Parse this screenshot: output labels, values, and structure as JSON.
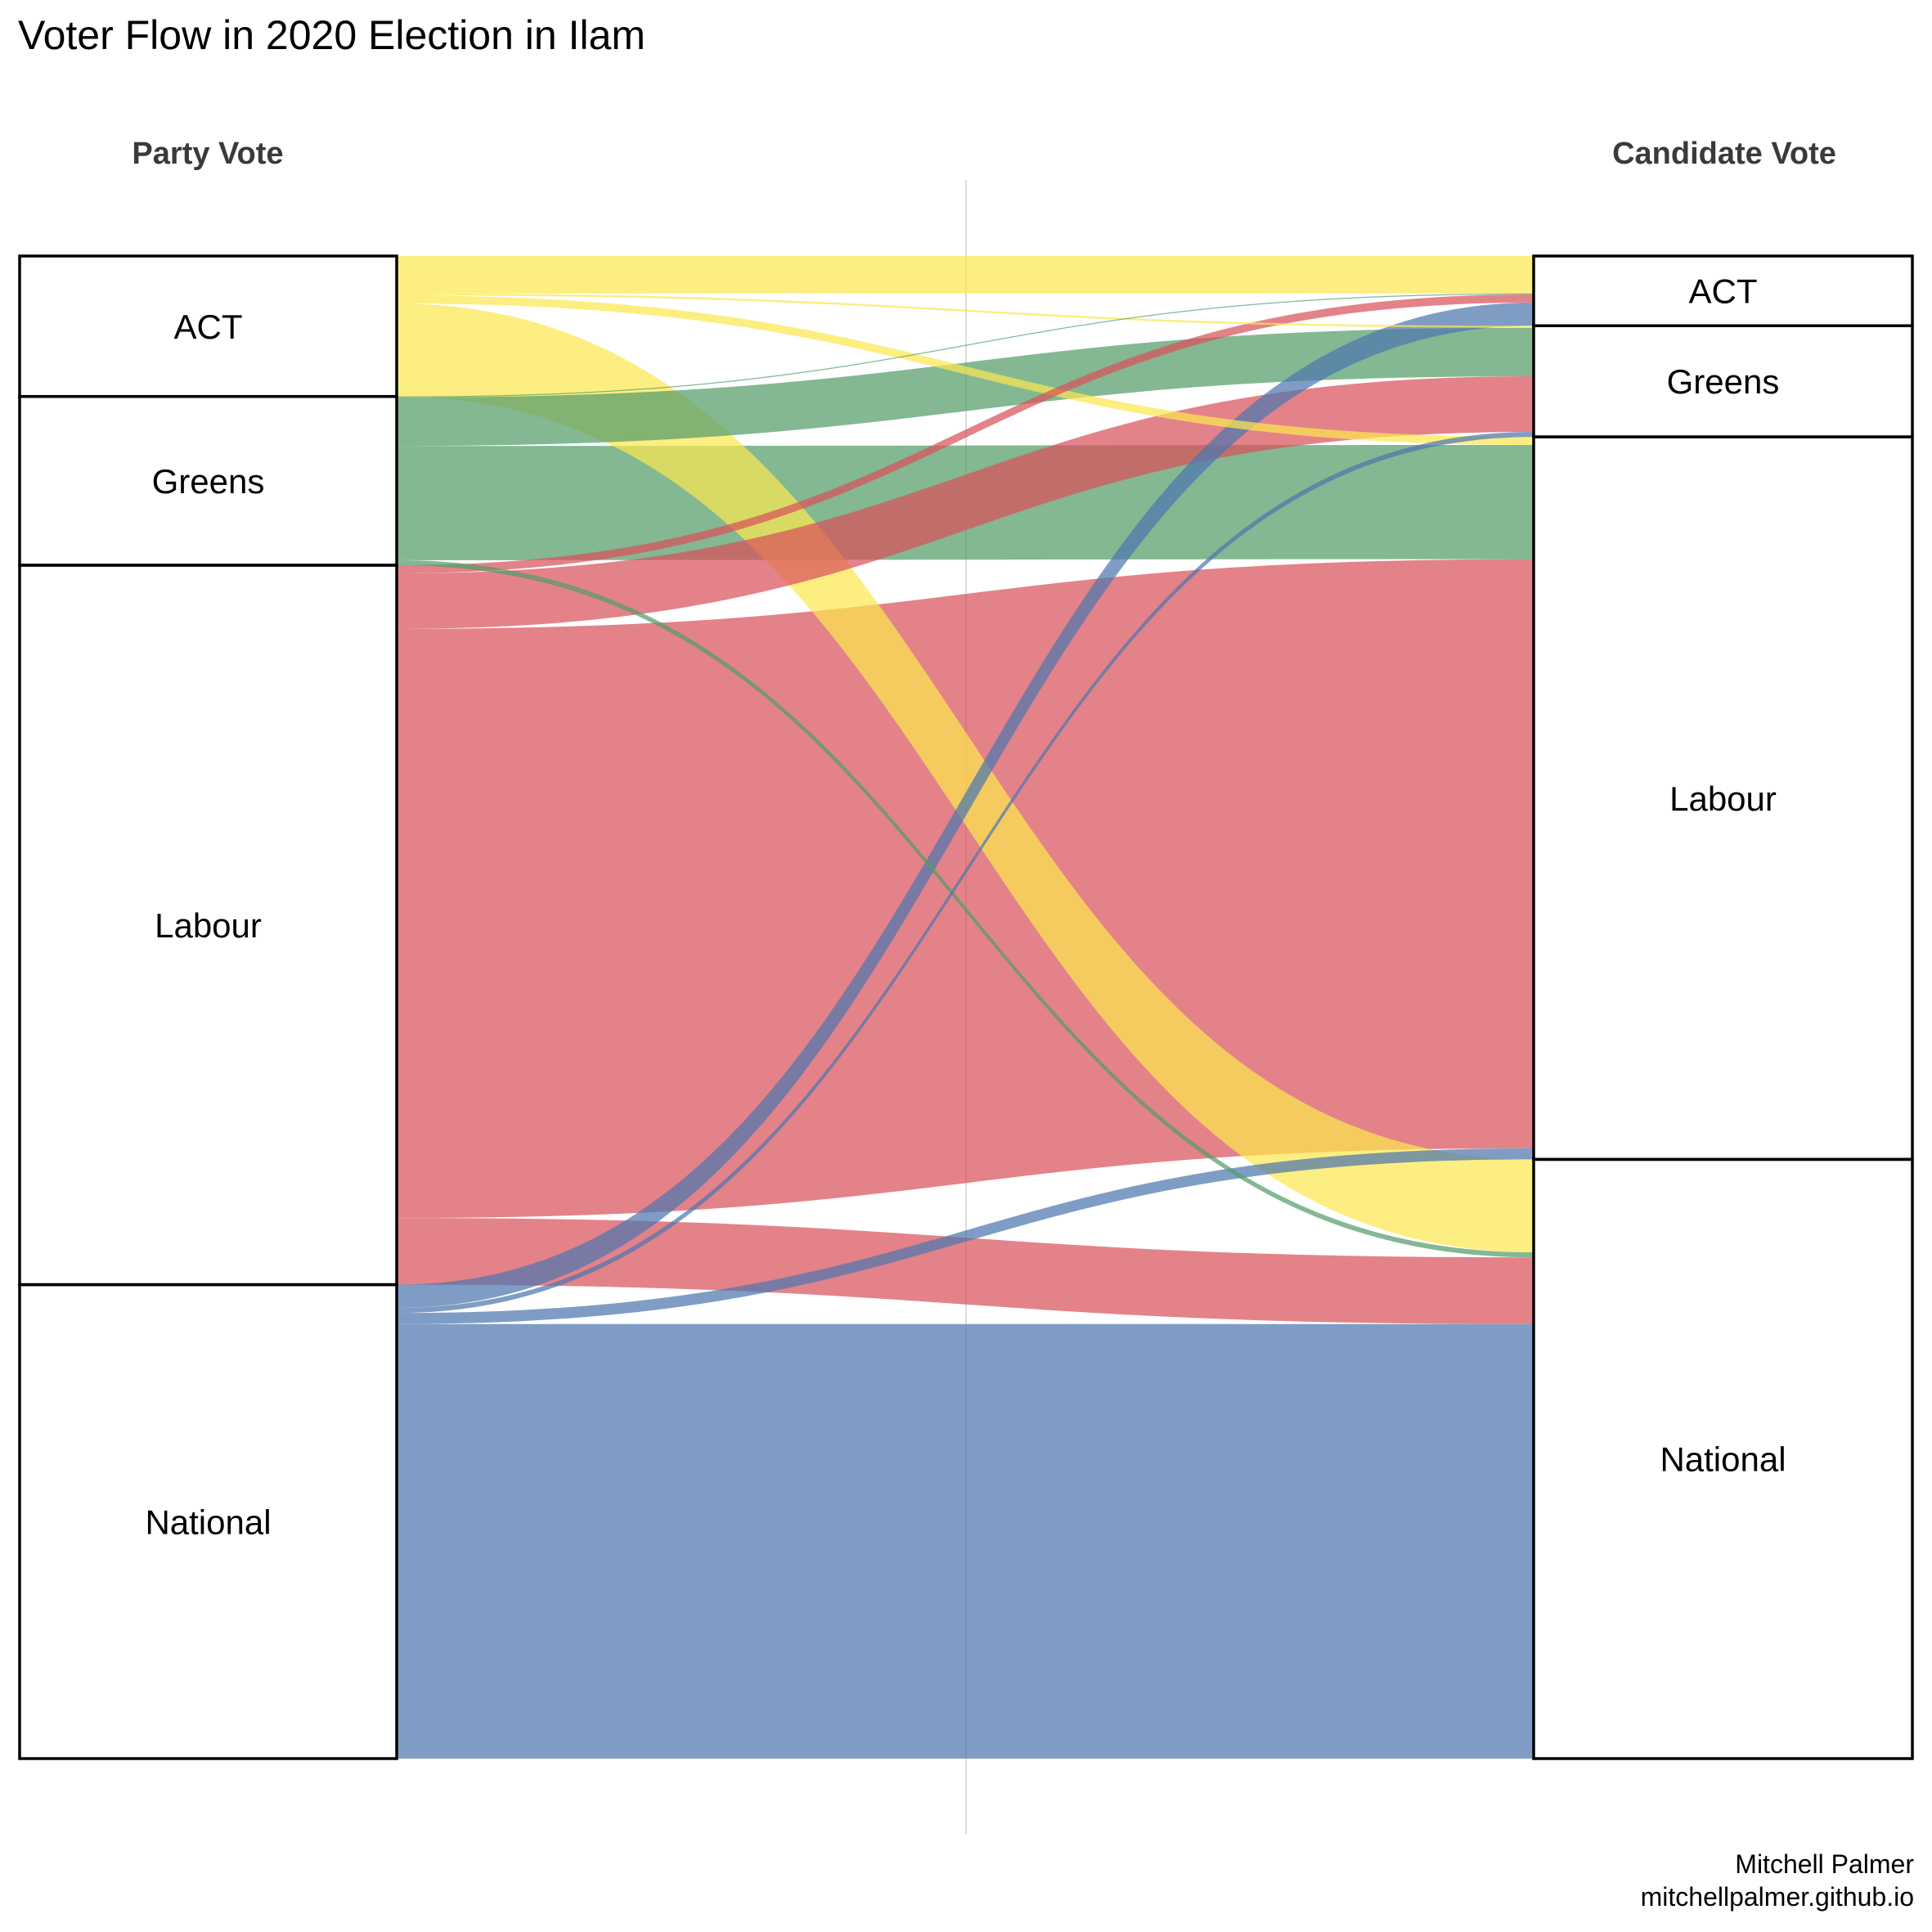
{
  "chart_data": {
    "type": "alluvial",
    "title": "Voter Flow in 2020 Election in Ilam",
    "left_axis_label": "Party Vote",
    "right_axis_label": "Candidate Vote",
    "caption": [
      "Mitchell Palmer",
      "mitchellpalmer.github.io"
    ],
    "parties": [
      {
        "name": "ACT",
        "color": "#fbe750"
      },
      {
        "name": "Greens",
        "color": "#539d69"
      },
      {
        "name": "Labour",
        "color": "#da525b"
      },
      {
        "name": "National",
        "color": "#4d77ad"
      }
    ],
    "left_nodes": [
      "ACT",
      "Greens",
      "Labour",
      "National"
    ],
    "right_nodes": [
      "ACT",
      "Greens",
      "Labour",
      "National"
    ],
    "flows": [
      {
        "from": "ACT",
        "to": "ACT",
        "value": 3.7
      },
      {
        "from": "ACT",
        "to": "Greens",
        "value": 0.2
      },
      {
        "from": "ACT",
        "to": "Labour",
        "value": 0.8
      },
      {
        "from": "ACT",
        "to": "National",
        "value": 9.2
      },
      {
        "from": "Greens",
        "to": "ACT",
        "value": 0.1
      },
      {
        "from": "Greens",
        "to": "Greens",
        "value": 4.8
      },
      {
        "from": "Greens",
        "to": "Labour",
        "value": 11.3
      },
      {
        "from": "Greens",
        "to": "National",
        "value": 0.5
      },
      {
        "from": "Labour",
        "to": "ACT",
        "value": 0.8
      },
      {
        "from": "Labour",
        "to": "Greens",
        "value": 5.5
      },
      {
        "from": "Labour",
        "to": "Labour",
        "value": 58.3
      },
      {
        "from": "Labour",
        "to": "National",
        "value": 6.6
      },
      {
        "from": "National",
        "to": "ACT",
        "value": 2.3
      },
      {
        "from": "National",
        "to": "Greens",
        "value": 0.5
      },
      {
        "from": "National",
        "to": "National",
        "value": 43.0
      },
      {
        "from": "National",
        "to": "Labour",
        "value": 1.1
      }
    ]
  }
}
